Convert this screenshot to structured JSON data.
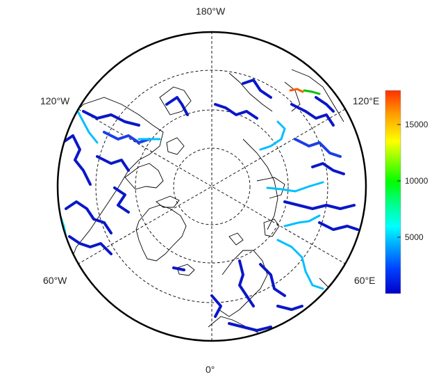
{
  "map": {
    "projection": "north-polar-stereographic",
    "lon_labels": {
      "top": "180°W",
      "bottom": "0°",
      "upper_left": "120°W",
      "upper_right": "120°E",
      "lower_left": "60°W",
      "lower_right": "60°E"
    },
    "graticule": {
      "style": "dashed",
      "color": "#000000"
    },
    "land_outline_color": "#000000",
    "ocean_color": "#ffffff",
    "river_line_colors": [
      "#0a17c8",
      "#1a3fe6",
      "#00bfff",
      "#00e5ff",
      "#ff5a00"
    ]
  },
  "colorbar": {
    "ticks": [
      "15000",
      "10000",
      "5000"
    ],
    "tick_values": [
      15000,
      10000,
      5000
    ],
    "min": 0,
    "max": 18000,
    "colors": [
      "#0000c8",
      "#0040ff",
      "#00b4ff",
      "#00ffff",
      "#00ff80",
      "#00ff00",
      "#80ff00",
      "#ffff00",
      "#ffa000",
      "#ff3000"
    ]
  }
}
